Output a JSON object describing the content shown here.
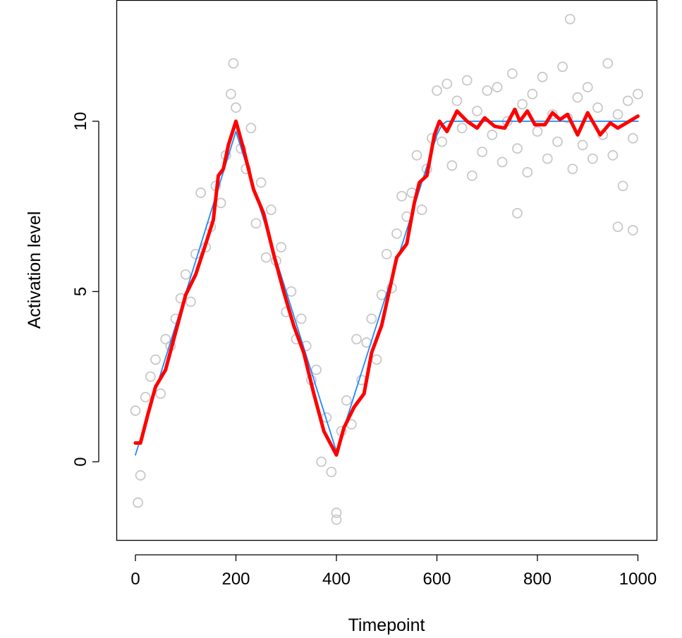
{
  "chart_data": {
    "type": "scatter",
    "title": "",
    "xlabel": "Timepoint",
    "ylabel": "Activation level",
    "xlim": [
      -38,
      1038
    ],
    "ylim": [
      -2.3,
      13.6
    ],
    "x_ticks": [
      0,
      200,
      400,
      600,
      800,
      1000
    ],
    "x_tick_labels": [
      "0",
      "200",
      "400",
      "600",
      "800",
      "1000"
    ],
    "y_ticks": [
      0,
      5,
      10
    ],
    "y_tick_labels": [
      "0",
      "5",
      "10"
    ],
    "grid": false,
    "legend": "none",
    "colors": {
      "points": "#c8c8c8",
      "true_line": "#1e88ff",
      "smooth_line": "#ff0000"
    },
    "points": {
      "x": [
        0,
        10,
        20,
        30,
        40,
        50,
        60,
        70,
        80,
        90,
        100,
        110,
        120,
        130,
        140,
        150,
        160,
        170,
        180,
        190,
        200,
        210,
        220,
        230,
        240,
        250,
        260,
        270,
        280,
        290,
        300,
        310,
        320,
        330,
        340,
        350,
        360,
        370,
        380,
        390,
        400,
        410,
        420,
        430,
        440,
        450,
        460,
        470,
        480,
        490,
        500,
        510,
        520,
        530,
        540,
        550,
        560,
        570,
        580,
        590,
        600,
        610,
        620,
        630,
        640,
        650,
        660,
        670,
        680,
        690,
        700,
        710,
        720,
        730,
        740,
        750,
        760,
        770,
        780,
        790,
        800,
        810,
        820,
        830,
        840,
        850,
        860,
        870,
        880,
        890,
        900,
        910,
        920,
        930,
        940,
        950,
        960,
        970,
        980,
        990,
        1000,
        5,
        195,
        400,
        760,
        865,
        960,
        990
      ],
      "y": [
        1.5,
        -0.4,
        1.9,
        2.5,
        3.0,
        2.0,
        3.6,
        3.4,
        4.2,
        4.8,
        5.5,
        4.7,
        6.1,
        7.9,
        6.3,
        6.9,
        8.1,
        7.6,
        9.0,
        10.8,
        10.4,
        9.2,
        8.6,
        9.8,
        7.0,
        8.2,
        6.0,
        7.4,
        5.9,
        6.3,
        4.4,
        5.0,
        3.6,
        4.2,
        3.4,
        2.4,
        2.7,
        0.0,
        1.3,
        -0.3,
        -1.5,
        0.9,
        1.8,
        1.1,
        3.6,
        2.4,
        3.5,
        4.2,
        3.0,
        4.9,
        6.1,
        5.1,
        6.7,
        7.8,
        7.2,
        7.9,
        9.0,
        7.4,
        8.6,
        9.5,
        10.9,
        9.4,
        11.1,
        8.7,
        10.6,
        9.8,
        11.2,
        8.4,
        10.3,
        9.1,
        10.9,
        9.6,
        11.0,
        8.8,
        10.0,
        11.4,
        9.2,
        10.5,
        8.5,
        10.8,
        9.7,
        11.3,
        8.9,
        10.2,
        9.4,
        11.6,
        10.1,
        8.6,
        10.7,
        9.3,
        11.0,
        8.9,
        10.4,
        9.6,
        11.7,
        9.0,
        10.2,
        8.1,
        10.6,
        9.5,
        10.8,
        -1.2,
        11.7,
        -1.7,
        7.3,
        13.0,
        6.9,
        6.8
      ]
    },
    "series": [
      {
        "x": [
          0,
          200,
          400,
          600,
          610,
          620,
          1000
        ],
        "y": [
          0.2,
          9.7,
          0.3,
          9.6,
          9.9,
          10.0,
          10.0
        ]
      },
      {
        "x": [
          0,
          10,
          25,
          40,
          60,
          80,
          100,
          120,
          140,
          155,
          165,
          175,
          185,
          200,
          215,
          235,
          255,
          275,
          295,
          315,
          335,
          355,
          375,
          400,
          415,
          435,
          455,
          470,
          490,
          505,
          520,
          540,
          555,
          565,
          580,
          595,
          605,
          620,
          640,
          660,
          680,
          695,
          715,
          735,
          755,
          765,
          780,
          795,
          815,
          830,
          845,
          860,
          880,
          900,
          925,
          945,
          960,
          1000
        ],
        "y": [
          0.55,
          0.55,
          1.4,
          2.2,
          2.7,
          3.8,
          4.9,
          5.5,
          6.4,
          7.1,
          8.4,
          8.6,
          9.3,
          10.0,
          9.2,
          8.0,
          7.3,
          6.1,
          5.0,
          4.0,
          3.2,
          2.0,
          0.9,
          0.2,
          1.0,
          1.6,
          2.0,
          3.2,
          4.0,
          5.0,
          6.0,
          6.4,
          7.6,
          8.2,
          8.4,
          9.6,
          10.0,
          9.7,
          10.3,
          10.0,
          9.8,
          10.1,
          9.85,
          9.8,
          10.35,
          10.0,
          10.3,
          9.9,
          9.9,
          10.25,
          10.05,
          10.2,
          9.6,
          10.25,
          9.6,
          9.95,
          9.8,
          10.15
        ]
      }
    ]
  }
}
